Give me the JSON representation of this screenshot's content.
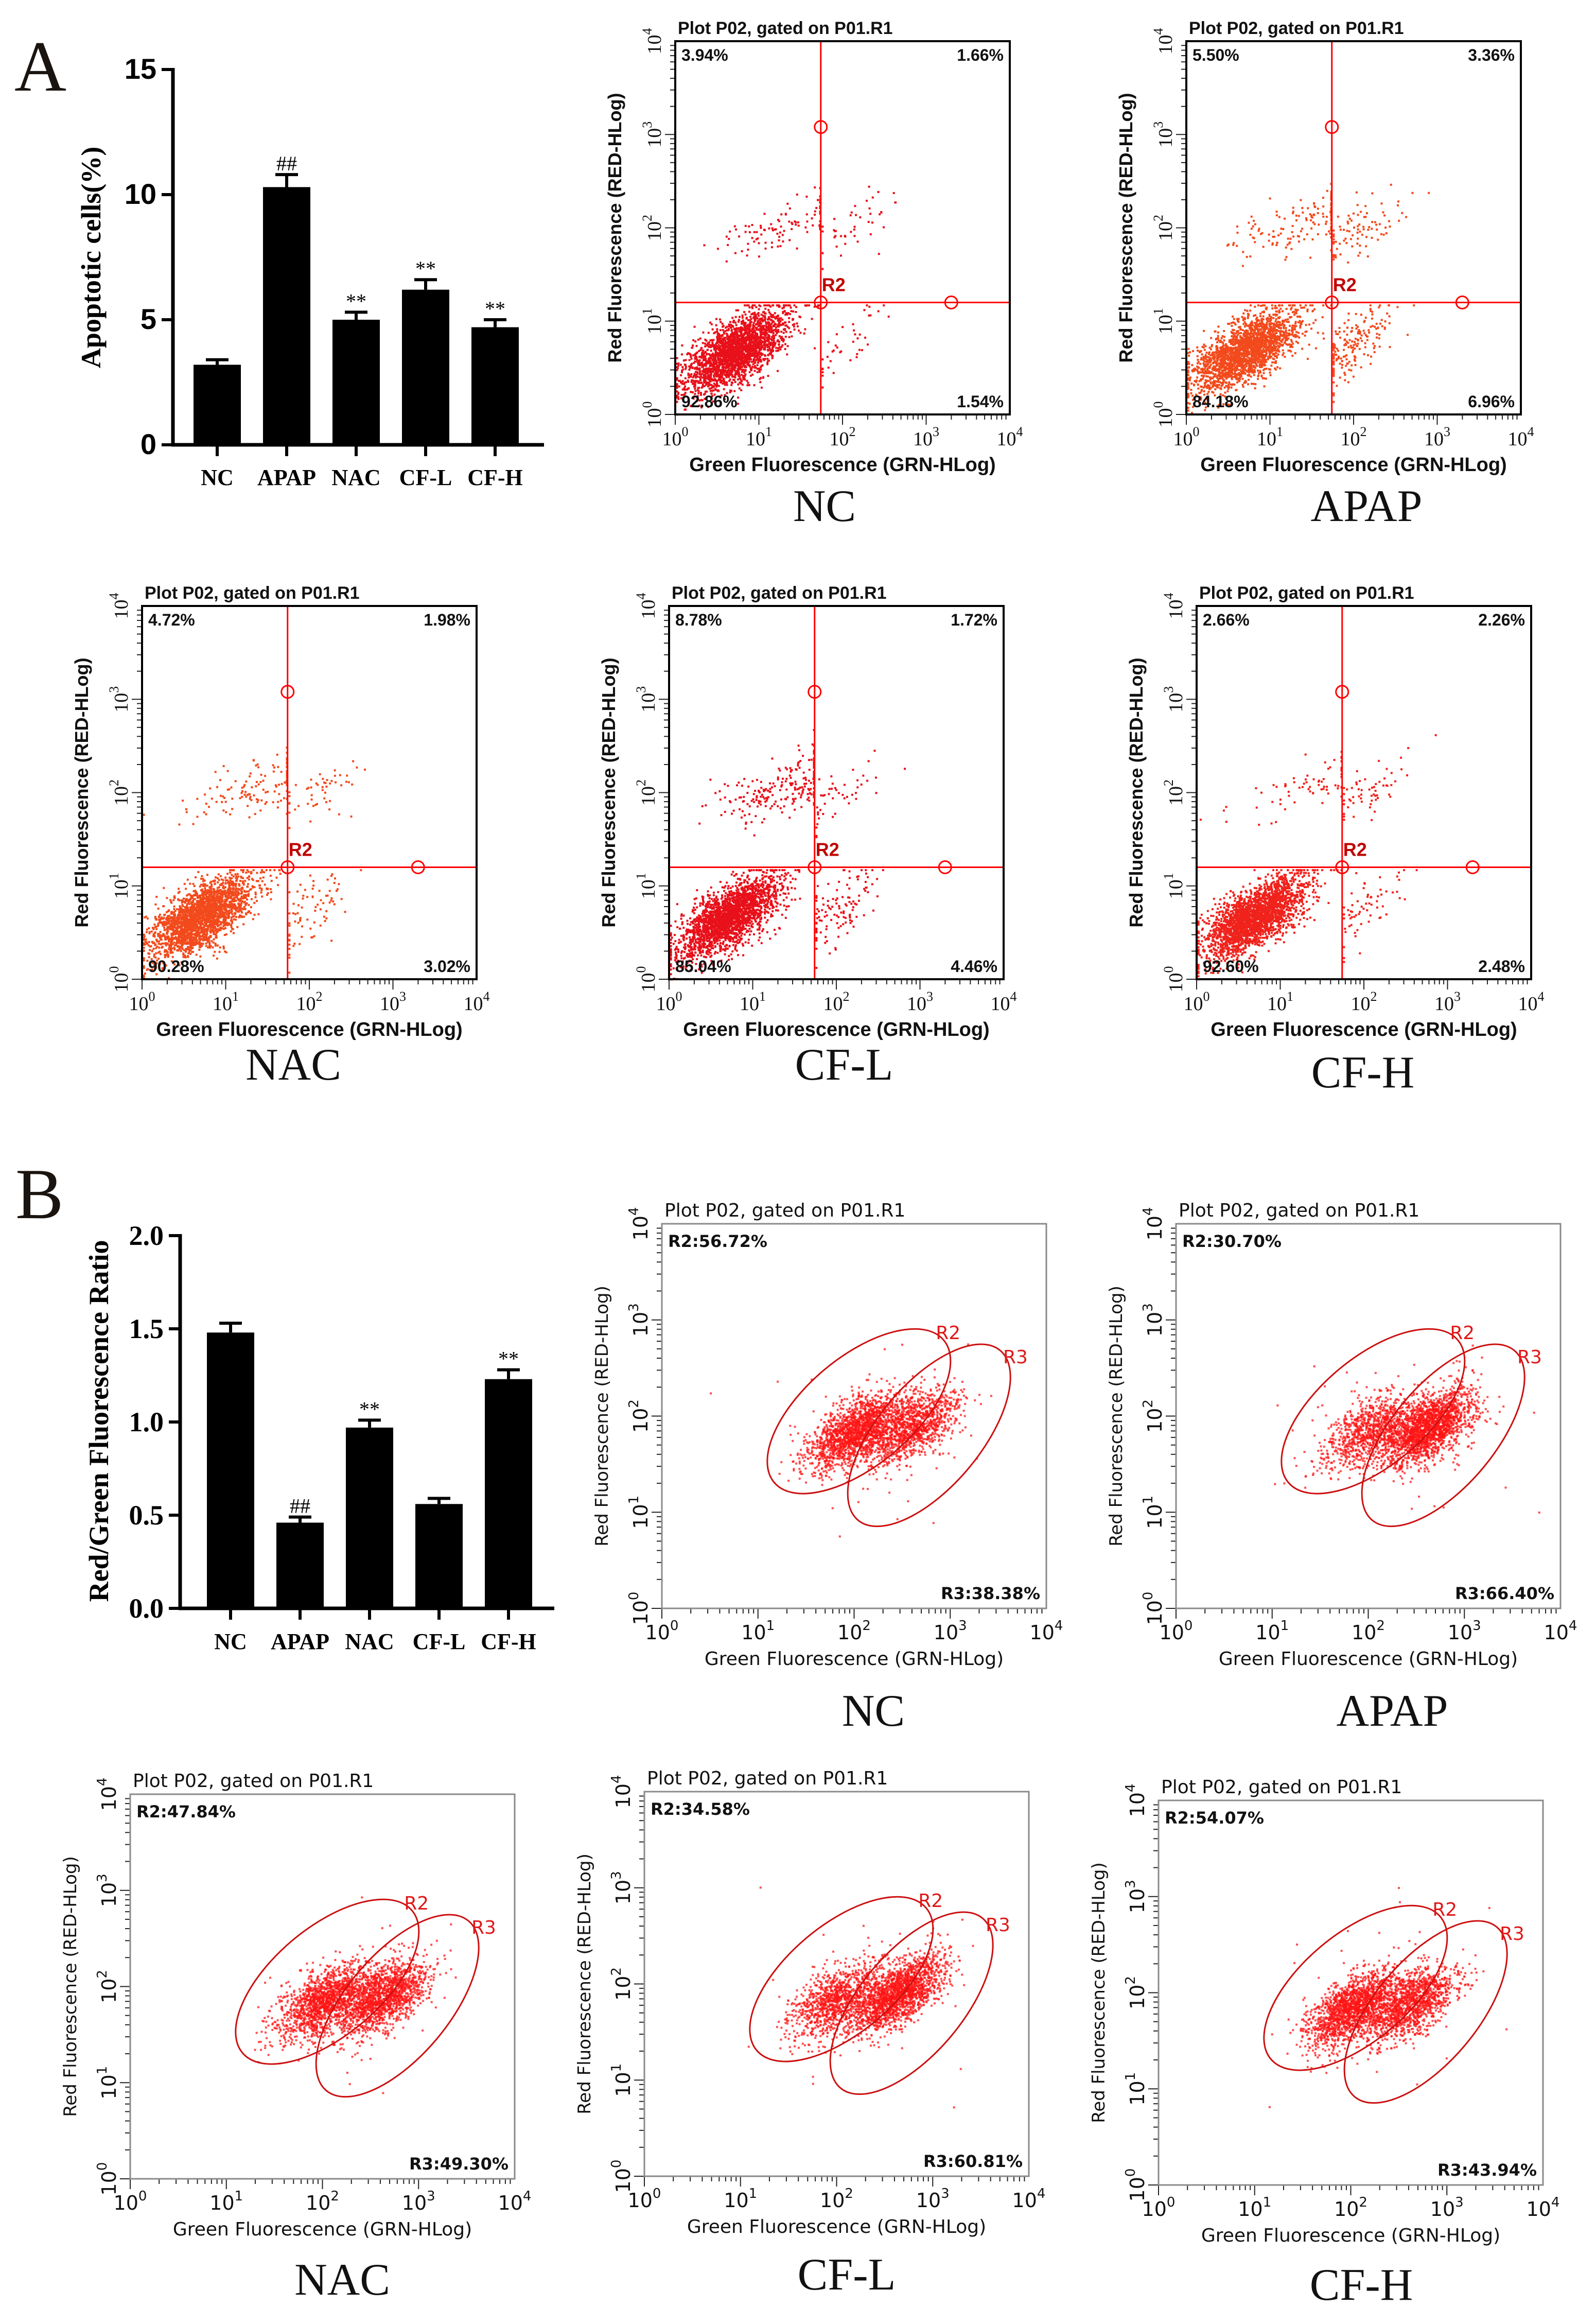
{
  "panels": {
    "a": "A",
    "b": "B"
  },
  "chart_data": [
    {
      "id": "apoptosis-bar",
      "type": "bar",
      "title": "",
      "xlabel": "",
      "ylabel": "Apoptotic cells(%)",
      "categories": [
        "NC",
        "APAP",
        "NAC",
        "CF-L",
        "CF-H"
      ],
      "values": [
        3.2,
        10.3,
        5.0,
        6.2,
        4.7
      ],
      "errors": [
        0.2,
        0.5,
        0.3,
        0.4,
        0.3
      ],
      "annotations": [
        "",
        "##",
        "**",
        "**",
        "**"
      ],
      "ylim": [
        0,
        15
      ],
      "yticks": [
        0,
        5,
        10,
        15
      ],
      "ytick_labels": [
        "0",
        "5",
        "10",
        "15"
      ],
      "bar_color": "#000000"
    },
    {
      "id": "ratio-bar",
      "type": "bar",
      "title": "",
      "xlabel": "",
      "ylabel": "Red/Green Fluorescence Ratio",
      "categories": [
        "NC",
        "APAP",
        "NAC",
        "CF-L",
        "CF-H"
      ],
      "values": [
        1.48,
        0.46,
        0.97,
        0.56,
        1.23
      ],
      "errors": [
        0.05,
        0.03,
        0.04,
        0.03,
        0.05
      ],
      "annotations": [
        "",
        "##",
        "**",
        "",
        "**"
      ],
      "ylim": [
        0,
        2.0
      ],
      "yticks": [
        0,
        0.5,
        1.0,
        1.5,
        2.0
      ],
      "ytick_labels": [
        "0.0",
        "0.5",
        "1.0",
        "1.5",
        "2.0"
      ],
      "bar_color": "#000000"
    },
    {
      "id": "annexin-quadrant-plots",
      "type": "scatter",
      "title": "Plot P02, gated on P01.R1",
      "xlabel": "Green Fluorescence (GRN-HLog)",
      "ylabel": "Red Fluorescence (RED-HLog)",
      "tick_base": "10",
      "tick_exponents": [
        "0",
        "1",
        "2",
        "3",
        "4"
      ],
      "xlim_log10": [
        0,
        4
      ],
      "ylim_log10": [
        0,
        4
      ],
      "gate_label": "R2",
      "gate_color": "#ff0000",
      "plots": [
        {
          "sample": "NC",
          "ul": "3.94%",
          "ur": "1.66%",
          "ll": "92.86%",
          "lr": "1.54%",
          "dot_color": "#e8101a"
        },
        {
          "sample": "APAP",
          "ul": "5.50%",
          "ur": "3.36%",
          "ll": "84.18%",
          "lr": "6.96%",
          "dot_color": "#f24a1c"
        },
        {
          "sample": "NAC",
          "ul": "4.72%",
          "ur": "1.98%",
          "ll": "90.28%",
          "lr": "3.02%",
          "dot_color": "#f24a1c"
        },
        {
          "sample": "CF-L",
          "ul": "8.78%",
          "ur": "1.72%",
          "ll": "85.04%",
          "lr": "4.46%",
          "dot_color": "#e8101a"
        },
        {
          "sample": "CF-H",
          "ul": "2.66%",
          "ur": "2.26%",
          "ll": "92.60%",
          "lr": "2.48%",
          "dot_color": "#f0221c"
        }
      ]
    },
    {
      "id": "jc1-ellipse-plots",
      "type": "scatter",
      "title": "Plot P02, gated on P01.R1",
      "xlabel": "Green Fluorescence (GRN-HLog)",
      "ylabel": "Red Fluorescence (RED-HLog)",
      "tick_base": "10",
      "tick_exponents": [
        "0",
        "1",
        "2",
        "3",
        "4"
      ],
      "xlim_log10": [
        0,
        4
      ],
      "ylim_log10": [
        0,
        4
      ],
      "region_labels": [
        "R2",
        "R3"
      ],
      "gate_color": "#cc1010",
      "plots": [
        {
          "sample": "NC",
          "r2": "R2:56.72%",
          "r3": "R3:38.38%",
          "r2_value": 56.72,
          "r3_value": 38.38,
          "dot_color": "#ff1414"
        },
        {
          "sample": "APAP",
          "r2": "R2:30.70%",
          "r3": "R3:66.40%",
          "r2_value": 30.7,
          "r3_value": 66.4,
          "dot_color": "#ff1414"
        },
        {
          "sample": "NAC",
          "r2": "R2:47.84%",
          "r3": "R3:49.30%",
          "r2_value": 47.84,
          "r3_value": 49.3,
          "dot_color": "#ff1414"
        },
        {
          "sample": "CF-L",
          "r2": "R2:34.58%",
          "r3": "R3:60.81%",
          "r2_value": 34.58,
          "r3_value": 60.81,
          "dot_color": "#ff1414"
        },
        {
          "sample": "CF-H",
          "r2": "R2:54.07%",
          "r3": "R3:43.94%",
          "r2_value": 54.07,
          "r3_value": 43.94,
          "dot_color": "#ff1414"
        }
      ]
    }
  ]
}
